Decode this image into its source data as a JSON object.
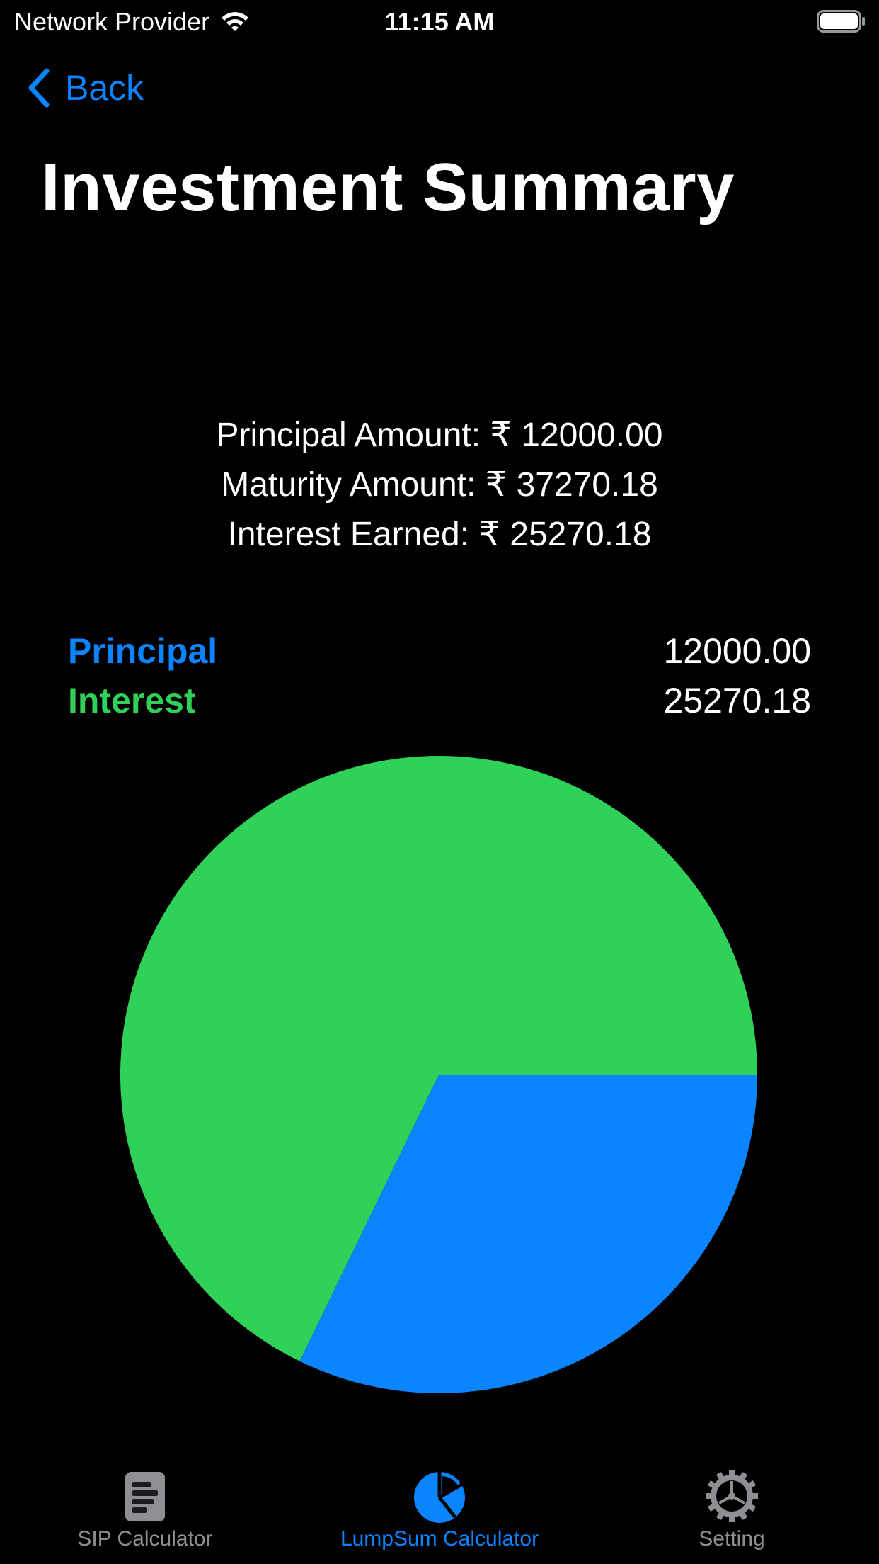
{
  "status_bar": {
    "carrier": "Network Provider",
    "time": "11:15 AM",
    "icons": [
      "wifi-icon",
      "battery-icon"
    ]
  },
  "nav": {
    "back_label": "Back",
    "title": "Investment Summary"
  },
  "summary": {
    "principal_line": "Principal Amount: ₹ 12000.00",
    "maturity_line": "Maturity Amount: ₹ 37270.18",
    "interest_line": "Interest Earned: ₹ 25270.18"
  },
  "legend": {
    "items": [
      {
        "label": "Principal",
        "value": "12000.00",
        "color": "#0a84ff"
      },
      {
        "label": "Interest",
        "value": "25270.18",
        "color": "#30d158"
      }
    ]
  },
  "chart_data": {
    "type": "pie",
    "categories": [
      "Principal",
      "Interest"
    ],
    "values": [
      12000.0,
      25270.18
    ],
    "colors": [
      "#0a84ff",
      "#30d158"
    ],
    "title": "",
    "legend_placement": "top"
  },
  "tab_bar": {
    "tabs": [
      {
        "label": "SIP Calculator",
        "icon": "document-icon",
        "active": false
      },
      {
        "label": "LumpSum Calculator",
        "icon": "pie-chart-icon",
        "active": true
      },
      {
        "label": "Setting",
        "icon": "gear-icon",
        "active": false
      }
    ]
  },
  "colors": {
    "background": "#000000",
    "accent": "#0a84ff",
    "interest": "#30d158",
    "tab_inactive": "#8e8e93"
  }
}
